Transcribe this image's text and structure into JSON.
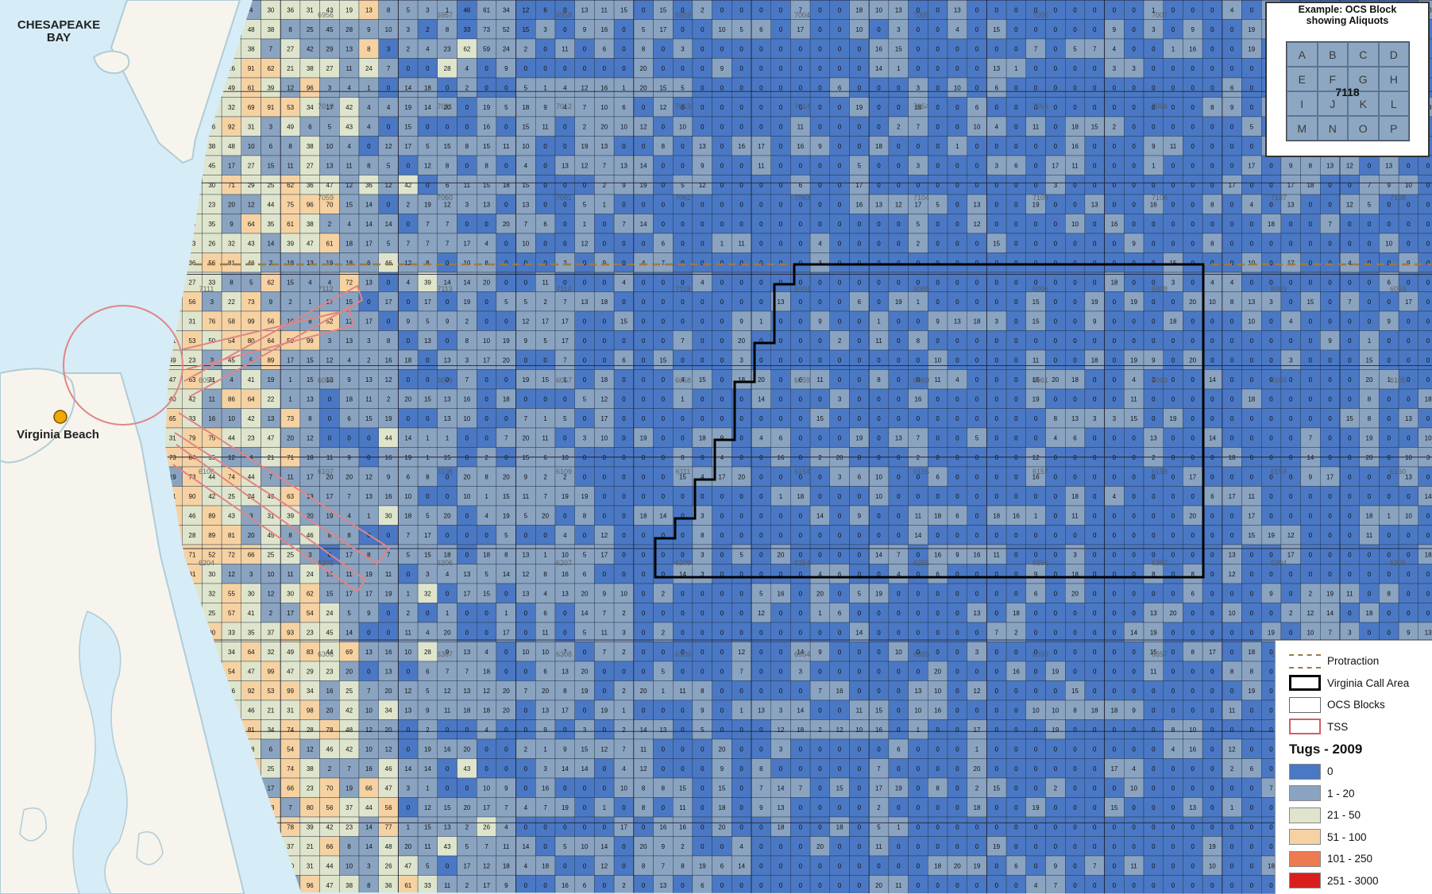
{
  "map": {
    "labels": {
      "bay": "CHESAPEAKE BAY",
      "city": "Virginia Beach"
    },
    "grid_values_sample": {
      "row_1": [
        "31",
        "43",
        "19",
        "13",
        "8",
        "5",
        "3",
        "1",
        "46",
        "61",
        "34",
        "12",
        "6"
      ],
      "row_2": [
        "25",
        "45",
        "28",
        "9",
        "10",
        "3",
        "2",
        "8",
        "33",
        "73",
        "52",
        "15",
        "3"
      ],
      "row_3": [
        "27",
        "42",
        "29",
        "13",
        "8",
        "3",
        "2",
        "4",
        "23",
        "62",
        "59",
        "24",
        "2"
      ]
    },
    "block_numbers": [
      "6956",
      "6957",
      "6958",
      "6959",
      "7004",
      "7005",
      "7006",
      "7007",
      "7008",
      "7009",
      "7010",
      "7011",
      "7012",
      "7013",
      "7014",
      "7054",
      "7055",
      "7056",
      "7057",
      "7058",
      "7059",
      "7060",
      "7061",
      "7062",
      "7063",
      "7104",
      "7105",
      "7106",
      "7107",
      "7108",
      "7111",
      "7112",
      "7113",
      "7114",
      "7118",
      "6004",
      "6005",
      "6006",
      "6008",
      "6009",
      "6053",
      "6054",
      "6055",
      "6056",
      "6057",
      "6058",
      "6059",
      "6060",
      "6061",
      "6063",
      "6104",
      "6105",
      "6106",
      "6107",
      "6108",
      "6109",
      "6111",
      "6154",
      "6155",
      "6157",
      "6158",
      "6159",
      "6160",
      "6204",
      "6205",
      "6206",
      "6207",
      "6209",
      "6254",
      "6255",
      "6256",
      "6257",
      "6304",
      "6305",
      "6306",
      "6307",
      "6308",
      "6309",
      "6354",
      "6355",
      "6356",
      "6357",
      "6358",
      "6359"
    ],
    "colors": {
      "land": "#f6f4ec",
      "water": "#d6ecf7",
      "shore": "#b0ccd8",
      "cell_border": "#1f2f44",
      "protraction": "#9c7a44",
      "call_area": "#000000",
      "tss": "#e08585"
    }
  },
  "inset": {
    "title_line1": "Example: OCS Block",
    "title_line2": "showing Aliquots",
    "aliquots": [
      "A",
      "B",
      "C",
      "D",
      "E",
      "F",
      "G",
      "H",
      "I",
      "J",
      "K",
      "L",
      "M",
      "N",
      "O",
      "P"
    ],
    "block_number": "7118"
  },
  "legend": {
    "items": [
      {
        "label": "Protraction",
        "kind": "dashed",
        "color": "#9c7a44"
      },
      {
        "label": "Virginia Call Area",
        "kind": "box-thick",
        "color": "#000000"
      },
      {
        "label": "OCS Blocks",
        "kind": "box-thin",
        "color": "#666666"
      },
      {
        "label": "TSS",
        "kind": "box-red",
        "color": "#d06060"
      }
    ],
    "title": "Tugs - 2009",
    "classes": [
      {
        "label": "0",
        "color": "#4a78c4"
      },
      {
        "label": "1 - 20",
        "color": "#8aa3c0"
      },
      {
        "label": "21 - 50",
        "color": "#dfe5cc"
      },
      {
        "label": "51 - 100",
        "color": "#f6d2a2"
      },
      {
        "label": "101 - 250",
        "color": "#ee7a52"
      },
      {
        "label": "251 - 3000",
        "color": "#d91e1e"
      }
    ]
  }
}
